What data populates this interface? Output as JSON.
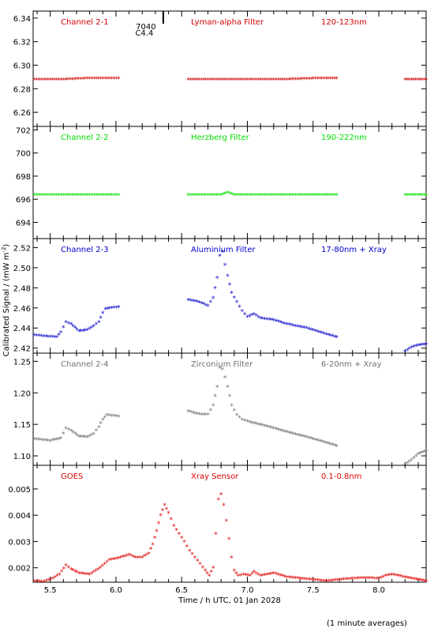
{
  "figure": {
    "y_label": "Calibrated Signal / (mW m",
    "y_label_exp": "-2",
    "y_label_end": ")",
    "x_label": "Time / h UTC, 01 Jan 2028",
    "footnote": "(1 minute averages)",
    "x_ticks": [
      {
        "value": 5.5,
        "label": "5.5"
      },
      {
        "value": 6.0,
        "label": "6.0"
      },
      {
        "value": 6.5,
        "label": "6.5"
      },
      {
        "value": 7.0,
        "label": "7.0"
      },
      {
        "value": 7.5,
        "label": "7.5"
      },
      {
        "value": 8.0,
        "label": "8.0"
      }
    ],
    "flare_marker": {
      "time": 6.36,
      "labels": [
        "7040",
        "C4.4"
      ]
    }
  },
  "chart_data": [
    {
      "type": "scatter",
      "channel": "Channel 2-1",
      "filter": "Lyman-alpha Filter",
      "band": "120-123nm",
      "color": "#d00000",
      "xlim": [
        5.37,
        8.36
      ],
      "ylim": [
        6.248,
        6.346
      ],
      "y_ticks": [
        6.26,
        6.28,
        6.3,
        6.32,
        6.34
      ],
      "y_tick_labels": [
        "6.26",
        "6.28",
        "6.30",
        "6.32",
        "6.34"
      ],
      "segments": [
        {
          "x": [
            5.38,
            5.6,
            5.8,
            6.02
          ],
          "y": [
            6.288,
            6.288,
            6.289,
            6.289
          ]
        },
        {
          "x": [
            6.55,
            6.8,
            7.05,
            7.3,
            7.55,
            7.68
          ],
          "y": [
            6.288,
            6.288,
            6.288,
            6.288,
            6.289,
            6.289
          ]
        },
        {
          "x": [
            8.2,
            8.36
          ],
          "y": [
            6.288,
            6.288
          ]
        }
      ]
    },
    {
      "type": "scatter",
      "channel": "Channel 2-2",
      "filter": "Herzberg Filter",
      "band": "190-222nm",
      "color": "#00e000",
      "xlim": [
        5.37,
        8.36
      ],
      "ylim": [
        692.6,
        702.3
      ],
      "y_ticks": [
        694,
        696,
        698,
        700,
        702
      ],
      "y_tick_labels": [
        "694",
        "696",
        "698",
        "700",
        "702"
      ],
      "segments": [
        {
          "x": [
            5.38,
            5.6,
            5.8,
            6.02
          ],
          "y": [
            696.4,
            696.4,
            696.4,
            696.4
          ]
        },
        {
          "x": [
            6.55,
            6.8,
            6.85,
            6.9,
            7.1,
            7.4,
            7.68
          ],
          "y": [
            696.4,
            696.4,
            696.6,
            696.4,
            696.4,
            696.4,
            696.4
          ]
        },
        {
          "x": [
            8.2,
            8.36
          ],
          "y": [
            696.4,
            696.4
          ]
        }
      ]
    },
    {
      "type": "scatter",
      "channel": "Channel 2-3",
      "filter": "Aluminium Filter",
      "band": "17-80nm + Xray",
      "color": "#0000cc",
      "xlim": [
        5.37,
        8.36
      ],
      "ylim": [
        2.415,
        2.529
      ],
      "y_ticks": [
        2.42,
        2.44,
        2.46,
        2.48,
        2.5,
        2.52
      ],
      "y_tick_labels": [
        "2.42",
        "2.44",
        "2.46",
        "2.48",
        "2.50",
        "2.52"
      ],
      "segments": [
        {
          "x": [
            5.38,
            5.45,
            5.55,
            5.58,
            5.62,
            5.66,
            5.72,
            5.78,
            5.83,
            5.87,
            5.9,
            5.92,
            5.95,
            6.02
          ],
          "y": [
            2.433,
            2.432,
            2.431,
            2.436,
            2.446,
            2.444,
            2.437,
            2.438,
            2.442,
            2.446,
            2.455,
            2.459,
            2.46,
            2.461
          ]
        },
        {
          "x": [
            6.55,
            6.6,
            6.65,
            6.7,
            6.74,
            6.77,
            6.79,
            6.81,
            6.83,
            6.85,
            6.88,
            6.92,
            6.96,
            7.0,
            7.05,
            7.1,
            7.2,
            7.3,
            7.45,
            7.6,
            7.68
          ],
          "y": [
            2.468,
            2.467,
            2.465,
            2.462,
            2.47,
            2.49,
            2.512,
            2.516,
            2.503,
            2.492,
            2.475,
            2.466,
            2.457,
            2.451,
            2.454,
            2.45,
            2.448,
            2.444,
            2.44,
            2.434,
            2.431
          ]
        },
        {
          "x": [
            8.2,
            8.25,
            8.3,
            8.36
          ],
          "y": [
            2.417,
            2.421,
            2.423,
            2.424
          ]
        }
      ]
    },
    {
      "type": "scatter",
      "channel": "Channel 2-4",
      "filter": "Zirconium Filter",
      "band": "6-20nm + Xray",
      "color": "#707070",
      "xlim": [
        5.37,
        8.36
      ],
      "ylim": [
        1.085,
        1.263
      ],
      "y_ticks": [
        1.1,
        1.15,
        1.2,
        1.25
      ],
      "y_tick_labels": [
        "1.10",
        "1.15",
        "1.20",
        "1.25"
      ],
      "segments": [
        {
          "x": [
            5.38,
            5.5,
            5.58,
            5.62,
            5.66,
            5.72,
            5.78,
            5.83,
            5.87,
            5.9,
            5.93,
            6.02
          ],
          "y": [
            1.127,
            1.124,
            1.128,
            1.144,
            1.14,
            1.131,
            1.13,
            1.135,
            1.146,
            1.158,
            1.165,
            1.163
          ]
        },
        {
          "x": [
            6.55,
            6.6,
            6.65,
            6.7,
            6.74,
            6.77,
            6.79,
            6.81,
            6.83,
            6.85,
            6.88,
            6.92,
            6.96,
            7.0,
            7.05,
            7.15,
            7.3,
            7.45,
            7.6,
            7.68
          ],
          "y": [
            1.171,
            1.168,
            1.166,
            1.166,
            1.18,
            1.21,
            1.24,
            1.238,
            1.225,
            1.21,
            1.18,
            1.165,
            1.158,
            1.155,
            1.152,
            1.147,
            1.138,
            1.13,
            1.121,
            1.116
          ]
        },
        {
          "x": [
            8.2,
            8.25,
            8.3,
            8.36
          ],
          "y": [
            1.086,
            1.094,
            1.103,
            1.108
          ]
        }
      ]
    },
    {
      "type": "scatter",
      "channel": "GOES",
      "filter": "Xray Sensor",
      "band": "0.1-0.8nm",
      "color": "#e00000",
      "xlim": [
        5.37,
        8.36
      ],
      "ylim": [
        0.00145,
        0.0059
      ],
      "y_ticks": [
        0.002,
        0.003,
        0.004,
        0.005
      ],
      "y_tick_labels": [
        "0.002",
        "0.003",
        "0.004",
        "0.005"
      ],
      "segments": [
        {
          "x": [
            5.38,
            5.45,
            5.52,
            5.57,
            5.62,
            5.66,
            5.72,
            5.8,
            5.88,
            5.95,
            6.0,
            6.05,
            6.1,
            6.15,
            6.2,
            6.25,
            6.28,
            6.31,
            6.34,
            6.37,
            6.4,
            6.44,
            6.48,
            6.52,
            6.56,
            6.6,
            6.64,
            6.68,
            6.71,
            6.74,
            6.76,
            6.78,
            6.8,
            6.82,
            6.84,
            6.86,
            6.88,
            6.9,
            6.93,
            6.97,
            7.02,
            7.05,
            7.1,
            7.15,
            7.2,
            7.3,
            7.4,
            7.5,
            7.6,
            7.7,
            7.8,
            7.9,
            8.0,
            8.05,
            8.1,
            8.2,
            8.3,
            8.36
          ],
          "y": [
            0.0015,
            0.00148,
            0.0016,
            0.00175,
            0.0021,
            0.00195,
            0.0018,
            0.00175,
            0.002,
            0.0023,
            0.00235,
            0.00242,
            0.0025,
            0.0024,
            0.0024,
            0.00255,
            0.0029,
            0.0034,
            0.004,
            0.0044,
            0.0041,
            0.0036,
            0.0033,
            0.003,
            0.00265,
            0.0024,
            0.00215,
            0.0019,
            0.0017,
            0.002,
            0.0033,
            0.0046,
            0.0048,
            0.0044,
            0.0038,
            0.0031,
            0.0024,
            0.0019,
            0.0017,
            0.00175,
            0.0017,
            0.00185,
            0.0017,
            0.00175,
            0.0018,
            0.00165,
            0.0016,
            0.00155,
            0.0015,
            0.00155,
            0.0016,
            0.00162,
            0.0016,
            0.0017,
            0.00175,
            0.00165,
            0.00155,
            0.0015
          ]
        }
      ]
    }
  ]
}
